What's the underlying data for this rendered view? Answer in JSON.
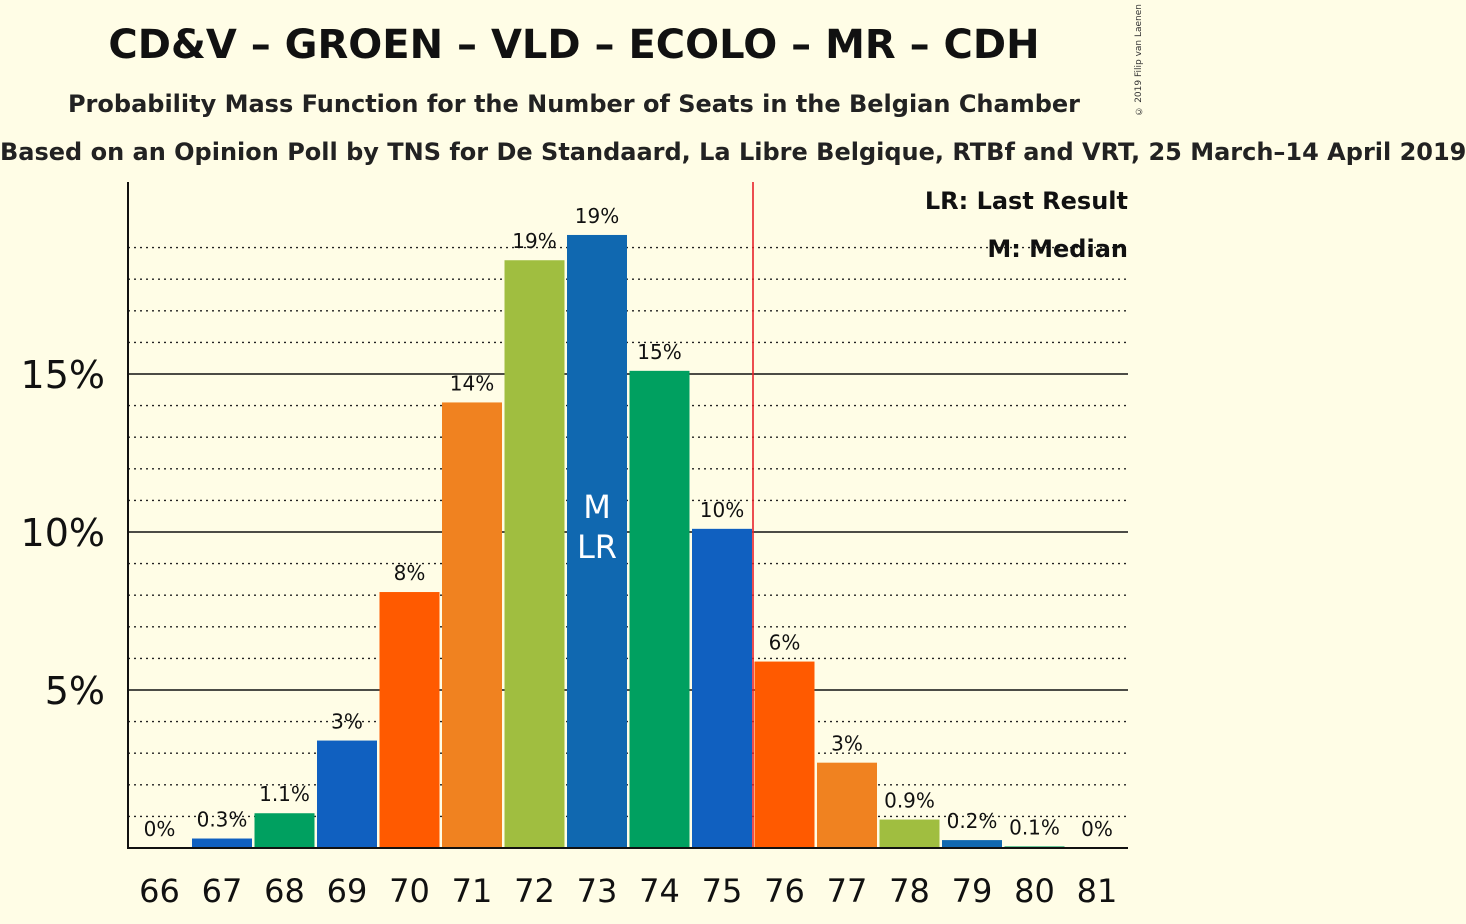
{
  "title": "CD&V – GROEN – VLD – ECOLO – MR – CDH",
  "subtitle": "Probability Mass Function for the Number of Seats in the Belgian Chamber",
  "subtitle2": "Based on an Opinion Poll by TNS for De Standaard, La Libre Belgique, RTBf and VRT, 25 March–14 April 2019",
  "copyright": "© 2019 Filip van Laenen",
  "legend": {
    "lr": "LR: Last Result",
    "m": "M: Median"
  },
  "markers": {
    "median_label": "M",
    "last_result_label": "LR"
  },
  "colors": {
    "background": "#fffde6",
    "majority_line": "#e8232b",
    "bars": [
      "#f08220",
      "#1060c0",
      "#00a060",
      "#1060c0",
      "#ff5a00",
      "#f08220",
      "#a0be40",
      "#1068b0",
      "#00a060",
      "#1060c0",
      "#ff5a00",
      "#f08220",
      "#a0be40",
      "#1068b0",
      "#00a060",
      "#1060c0"
    ]
  },
  "chart_data": {
    "type": "bar",
    "categories": [
      "66",
      "67",
      "68",
      "69",
      "70",
      "71",
      "72",
      "73",
      "74",
      "75",
      "76",
      "77",
      "78",
      "79",
      "80",
      "81"
    ],
    "values": [
      0.0,
      0.3,
      1.1,
      3.4,
      8.1,
      14.1,
      18.6,
      19.4,
      15.1,
      10.1,
      5.9,
      2.7,
      0.9,
      0.25,
      0.05,
      0.0
    ],
    "data_labels": [
      "0%",
      "0.3%",
      "1.1%",
      "3%",
      "8%",
      "14%",
      "19%",
      "19%",
      "15%",
      "10%",
      "6%",
      "3%",
      "0.9%",
      "0.2%",
      "0.1%",
      "0%"
    ],
    "y_ticks": [
      5,
      10,
      15
    ],
    "y_tick_labels": [
      "5%",
      "10%",
      "15%"
    ],
    "ylim": [
      0,
      21.2
    ],
    "median_seat": "73",
    "last_result_seat": "73",
    "majority_after": "75",
    "grid": true,
    "legend_position": "top-right"
  }
}
